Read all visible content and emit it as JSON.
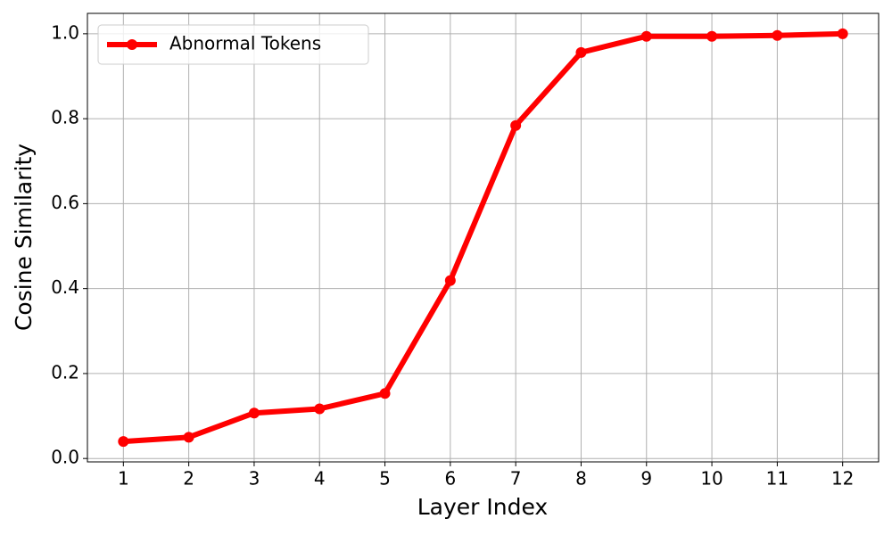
{
  "chart_data": {
    "type": "line",
    "xlabel": "Layer Index",
    "ylabel": "Cosine Similarity",
    "x": [
      1,
      2,
      3,
      4,
      5,
      6,
      7,
      8,
      9,
      10,
      11,
      12
    ],
    "series": [
      {
        "name": "Abnormal Tokens",
        "color": "#ff0000",
        "values": [
          0.04,
          0.05,
          0.107,
          0.117,
          0.153,
          0.419,
          0.784,
          0.956,
          0.994,
          0.994,
          0.996,
          1.0
        ]
      }
    ],
    "xlim": [
      0.45,
      12.55
    ],
    "ylim": [
      -0.008,
      1.048
    ],
    "xticks": [
      1,
      2,
      3,
      4,
      5,
      6,
      7,
      8,
      9,
      10,
      11,
      12
    ],
    "yticks": [
      {
        "value": 0,
        "label": "0.0"
      },
      0.2,
      0.4,
      0.6,
      0.8,
      {
        "value": 1,
        "label": "1.0"
      }
    ],
    "grid": true,
    "legend": "upper-left"
  }
}
